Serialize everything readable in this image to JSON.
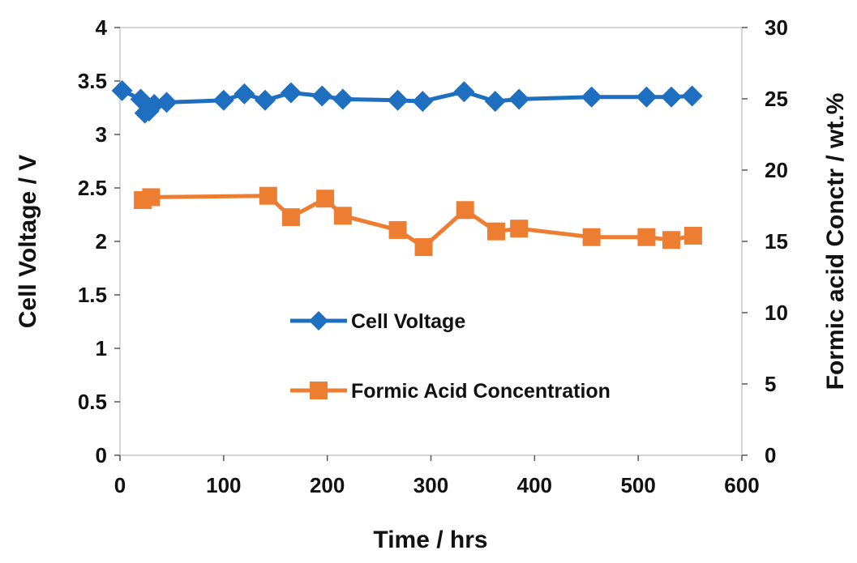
{
  "chart_data": {
    "type": "line",
    "xlabel": "Time / hrs",
    "ylabel": "Cell Voltage / V",
    "y2label": "Formic acid Conctr / wt.%",
    "xlim": [
      0,
      600
    ],
    "ylim": [
      0,
      4
    ],
    "y2lim": [
      0,
      30
    ],
    "x_ticks": [
      "0",
      "100",
      "200",
      "300",
      "400",
      "500",
      "600"
    ],
    "y_ticks": [
      "0",
      "0.5",
      "1",
      "1.5",
      "2",
      "2.5",
      "3",
      "3.5",
      "4"
    ],
    "y2_ticks": [
      "0",
      "5",
      "10",
      "15",
      "20",
      "25",
      "30"
    ],
    "grid": false,
    "legend_position": "center-left",
    "series": [
      {
        "name": "Cell Voltage",
        "axis": "left",
        "marker": "diamond",
        "color": "#1f6fc1",
        "x": [
          2,
          20,
          24,
          28,
          33,
          45,
          100,
          120,
          140,
          165,
          195,
          215,
          268,
          292,
          332,
          362,
          385,
          455,
          508,
          532,
          552
        ],
        "y": [
          3.41,
          3.33,
          3.2,
          3.22,
          3.28,
          3.3,
          3.32,
          3.38,
          3.32,
          3.39,
          3.36,
          3.33,
          3.32,
          3.31,
          3.4,
          3.31,
          3.33,
          3.35,
          3.35,
          3.35,
          3.36
        ]
      },
      {
        "name": "Formic Acid Concentration",
        "axis": "right",
        "marker": "square",
        "color": "#ed7d31",
        "x": [
          22,
          30,
          143,
          165,
          198,
          215,
          268,
          293,
          333,
          363,
          385,
          455,
          508,
          532,
          553
        ],
        "y": [
          17.9,
          18.1,
          18.2,
          16.7,
          18.0,
          16.8,
          15.8,
          14.6,
          17.2,
          15.7,
          15.9,
          15.3,
          15.3,
          15.1,
          15.4
        ]
      }
    ]
  }
}
